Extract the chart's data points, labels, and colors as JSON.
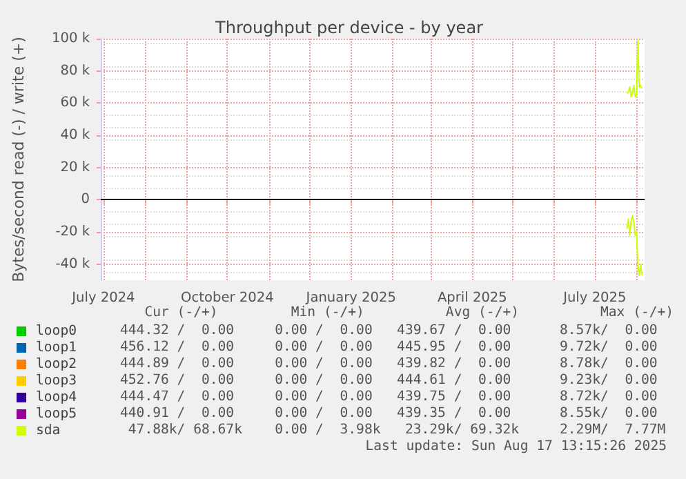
{
  "chart_data": {
    "type": "line",
    "title": "Throughput per device - by year",
    "ylabel": "Bytes/second read (-) / write (+)",
    "xlim": [
      "2024-06-29",
      "2025-08-07"
    ],
    "ylim": [
      -50000,
      100000
    ],
    "xticks": [
      {
        "value": "2024-07-01",
        "label": "July 2024"
      },
      {
        "value": "2024-08-01",
        "label": null
      },
      {
        "value": "2024-09-01",
        "label": null
      },
      {
        "value": "2024-10-01",
        "label": "October 2024"
      },
      {
        "value": "2024-11-01",
        "label": null
      },
      {
        "value": "2024-12-01",
        "label": null
      },
      {
        "value": "2025-01-01",
        "label": "January 2025"
      },
      {
        "value": "2025-02-01",
        "label": null
      },
      {
        "value": "2025-03-01",
        "label": null
      },
      {
        "value": "2025-04-01",
        "label": "April 2025"
      },
      {
        "value": "2025-05-01",
        "label": null
      },
      {
        "value": "2025-06-01",
        "label": null
      },
      {
        "value": "2025-07-01",
        "label": "July 2025"
      },
      {
        "value": "2025-08-01",
        "label": null
      }
    ],
    "yticks": [
      {
        "value": -40000,
        "label": "-40 k"
      },
      {
        "value": -20000,
        "label": "-20 k"
      },
      {
        "value": 0,
        "label": "0"
      },
      {
        "value": 20000,
        "label": "20 k"
      },
      {
        "value": 40000,
        "label": "40 k"
      },
      {
        "value": 60000,
        "label": "60 k"
      },
      {
        "value": 80000,
        "label": "80 k"
      },
      {
        "value": 100000,
        "label": "100 k"
      }
    ],
    "grid": true,
    "legend": "bottom left",
    "marker": "none",
    "line_style": "solid",
    "ref_lines": [
      {
        "axis": "y",
        "value": 0,
        "color": "#000000"
      }
    ],
    "series": [
      {
        "name": "loop0",
        "color": "#00cc00"
      },
      {
        "name": "loop1",
        "color": "#0066b3"
      },
      {
        "name": "loop2",
        "color": "#ff8000"
      },
      {
        "name": "loop3",
        "color": "#ffcc00"
      },
      {
        "name": "loop4",
        "color": "#330099"
      },
      {
        "name": "loop5",
        "color": "#990099"
      },
      {
        "name": "sda",
        "color": "#ccff00",
        "x": [
          "2025-07-25",
          "2025-07-26",
          "2025-07-27",
          "2025-07-28",
          "2025-07-29",
          "2025-07-30",
          "2025-07-31",
          "2025-08-01",
          "2025-08-02",
          "2025-08-03",
          "2025-08-04",
          "2025-08-05"
        ],
        "values": [
          66000,
          67000,
          70000,
          64000,
          66000,
          71000,
          64000,
          65000,
          99000,
          70000,
          71000,
          69000
        ]
      },
      {
        "color": "#ccff00",
        "x": [
          "2025-07-25",
          "2025-07-26",
          "2025-07-27",
          "2025-07-28",
          "2025-07-29",
          "2025-07-30",
          "2025-07-31",
          "2025-08-01",
          "2025-08-02",
          "2025-08-03",
          "2025-08-04",
          "2025-08-05"
        ],
        "values": [
          -18000,
          -12000,
          -22000,
          -13000,
          -10000,
          -14000,
          -22000,
          -20000,
          -41000,
          -47000,
          -40000,
          -47000
        ]
      }
    ],
    "annotations": [
      "   Cur (-/+)         Min (-/+)          Avg (-/+)          Max (-/+)",
      "444.32 /  0.00     0.00 /  0.00   439.67 /  0.00      8.57k/  0.00",
      "456.12 /  0.00     0.00 /  0.00   445.95 /  0.00      9.72k/  0.00",
      "444.89 /  0.00     0.00 /  0.00   439.82 /  0.00      8.78k/  0.00",
      "452.76 /  0.00     0.00 /  0.00   444.61 /  0.00      9.23k/  0.00",
      "444.47 /  0.00     0.00 /  0.00   439.75 /  0.00      8.72k/  0.00",
      "440.91 /  0.00     0.00 /  0.00   439.35 /  0.00      8.55k/  0.00",
      " 47.88k/ 68.67k    0.00 /  3.98k   23.29k/ 69.32k     2.29M/  7.77M",
      "Last update: Sun Aug 17 13:15:26 2025"
    ]
  }
}
